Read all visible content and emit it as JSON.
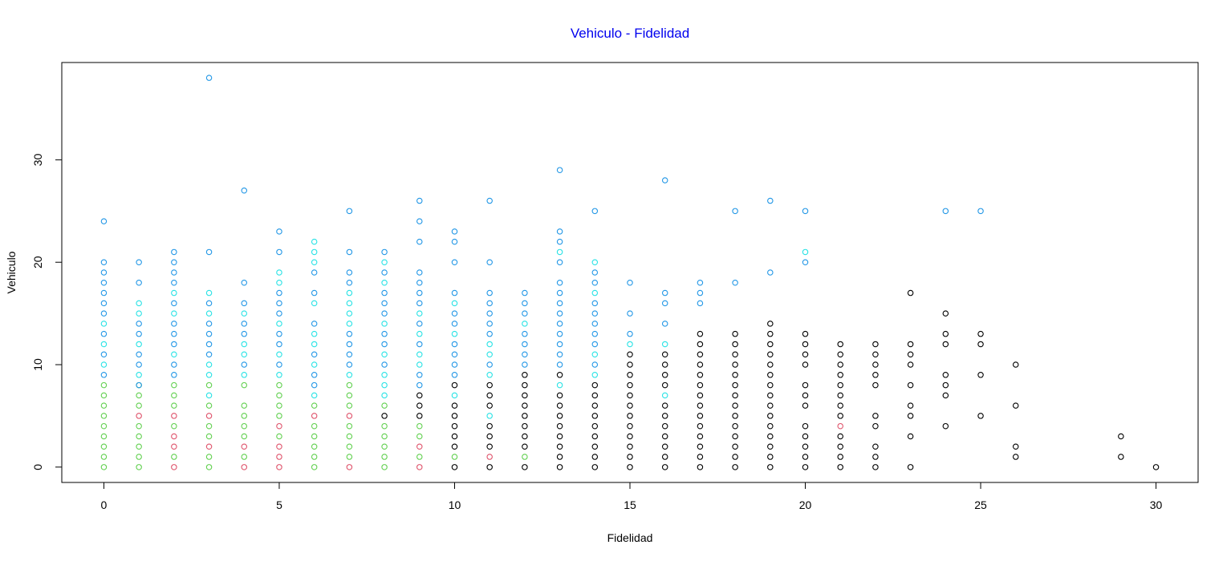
{
  "chart_data": {
    "type": "scatter",
    "title": "Vehiculo - Fidelidad",
    "xlabel": "Fidelidad",
    "ylabel": "Vehiculo",
    "xlim": [
      -1.2,
      31.2
    ],
    "ylim": [
      -1.5,
      39.5
    ],
    "xticks": [
      0,
      5,
      10,
      15,
      20,
      25,
      30
    ],
    "yticks": [
      0,
      10,
      20,
      30
    ],
    "grid": false,
    "legend": "none",
    "colors": {
      "title": "#0000ee",
      "green": "#61d04f",
      "red": "#df536b",
      "cyan": "#28e2e5",
      "blue": "#2297e6",
      "black": "#000000"
    },
    "columns": [
      {
        "x": 0,
        "green": [
          0,
          1,
          2,
          3,
          4,
          5,
          6,
          7,
          8
        ],
        "cyan": [
          10,
          12,
          14
        ],
        "blue": [
          9,
          11,
          13,
          15,
          16,
          17,
          18,
          19,
          20,
          24
        ]
      },
      {
        "x": 1,
        "green": [
          0,
          1,
          2,
          3,
          4,
          6,
          7,
          8
        ],
        "red": [
          5
        ],
        "cyan": [
          9,
          12,
          15,
          16
        ],
        "blue": [
          8,
          10,
          11,
          13,
          14,
          18,
          20
        ]
      },
      {
        "x": 2,
        "green": [
          1,
          4,
          6,
          7,
          8
        ],
        "red": [
          0,
          2,
          3,
          5
        ],
        "cyan": [
          11,
          15,
          17
        ],
        "blue": [
          9,
          10,
          12,
          13,
          14,
          16,
          18,
          19,
          20,
          21
        ]
      },
      {
        "x": 3,
        "green": [
          0,
          1,
          3,
          4,
          6,
          8
        ],
        "red": [
          2,
          5
        ],
        "cyan": [
          7,
          9,
          10,
          15,
          17
        ],
        "blue": [
          11,
          12,
          13,
          14,
          16,
          21,
          38
        ]
      },
      {
        "x": 4,
        "green": [
          1,
          3,
          4,
          5,
          6,
          8
        ],
        "red": [
          0,
          2
        ],
        "cyan": [
          9,
          11,
          12,
          15
        ],
        "blue": [
          10,
          13,
          14,
          16,
          18,
          27
        ]
      },
      {
        "x": 5,
        "green": [
          3,
          5,
          6,
          7,
          8
        ],
        "red": [
          0,
          1,
          2,
          4
        ],
        "cyan": [
          9,
          11,
          14,
          18,
          19
        ],
        "blue": [
          10,
          12,
          13,
          15,
          16,
          17,
          21,
          23
        ]
      },
      {
        "x": 6,
        "green": [
          0,
          1,
          2,
          3,
          4,
          6
        ],
        "red": [
          5
        ],
        "cyan": [
          7,
          10,
          12,
          13,
          16,
          20,
          21,
          22
        ],
        "blue": [
          8,
          9,
          11,
          14,
          17,
          19
        ]
      },
      {
        "x": 7,
        "green": [
          1,
          2,
          3,
          4,
          6,
          7,
          8
        ],
        "red": [
          0,
          5
        ],
        "cyan": [
          9,
          14,
          15,
          16,
          17
        ],
        "blue": [
          10,
          11,
          12,
          13,
          18,
          19,
          21,
          25
        ]
      },
      {
        "x": 8,
        "green": [
          0,
          1,
          2,
          3,
          4,
          6
        ],
        "cyan": [
          7,
          8,
          9,
          11,
          14,
          18,
          20
        ],
        "blue": [
          10,
          12,
          13,
          15,
          16,
          17,
          19,
          21
        ],
        "black": [
          5
        ]
      },
      {
        "x": 9,
        "green": [
          1,
          3,
          4
        ],
        "red": [
          0,
          2
        ],
        "cyan": [
          10,
          11,
          13,
          15
        ],
        "blue": [
          8,
          9,
          12,
          14,
          16,
          17,
          18,
          19,
          22,
          24,
          26
        ],
        "black": [
          5,
          6,
          7
        ]
      },
      {
        "x": 10,
        "green": [
          1
        ],
        "cyan": [
          7,
          13,
          16
        ],
        "blue": [
          9,
          10,
          11,
          12,
          14,
          15,
          17,
          20,
          22,
          23
        ],
        "black": [
          0,
          2,
          3,
          4,
          5,
          6,
          8
        ]
      },
      {
        "x": 11,
        "red": [
          1
        ],
        "cyan": [
          5,
          9,
          11,
          12
        ],
        "blue": [
          10,
          13,
          14,
          15,
          16,
          17,
          20,
          26
        ],
        "black": [
          0,
          2,
          3,
          4,
          6,
          7,
          8
        ]
      },
      {
        "x": 12,
        "green": [
          1
        ],
        "cyan": [
          14
        ],
        "blue": [
          10,
          11,
          12,
          13,
          15,
          16,
          17
        ],
        "black": [
          0,
          2,
          3,
          4,
          5,
          6,
          7,
          8,
          9
        ]
      },
      {
        "x": 13,
        "cyan": [
          8,
          21
        ],
        "blue": [
          10,
          11,
          12,
          13,
          14,
          15,
          16,
          17,
          18,
          20,
          22,
          23,
          29
        ],
        "black": [
          0,
          1,
          2,
          3,
          4,
          5,
          6,
          7,
          9
        ]
      },
      {
        "x": 14,
        "cyan": [
          9,
          11,
          17,
          20
        ],
        "blue": [
          10,
          12,
          13,
          14,
          15,
          16,
          18,
          19,
          25
        ],
        "black": [
          0,
          1,
          2,
          3,
          4,
          5,
          6,
          7,
          8
        ]
      },
      {
        "x": 15,
        "cyan": [
          12
        ],
        "blue": [
          13,
          15,
          18
        ],
        "black": [
          0,
          1,
          2,
          3,
          4,
          5,
          6,
          7,
          8,
          9,
          10,
          11
        ]
      },
      {
        "x": 16,
        "cyan": [
          7,
          12
        ],
        "blue": [
          14,
          16,
          17,
          28
        ],
        "black": [
          0,
          1,
          2,
          3,
          4,
          5,
          6,
          8,
          9,
          10,
          11
        ]
      },
      {
        "x": 17,
        "blue": [
          16,
          17,
          18
        ],
        "black": [
          0,
          1,
          2,
          3,
          4,
          5,
          6,
          7,
          8,
          9,
          10,
          11,
          12,
          13
        ]
      },
      {
        "x": 18,
        "blue": [
          18,
          25
        ],
        "black": [
          0,
          1,
          2,
          3,
          4,
          5,
          6,
          7,
          8,
          9,
          10,
          11,
          12,
          13
        ]
      },
      {
        "x": 19,
        "blue": [
          19,
          26
        ],
        "black": [
          0,
          1,
          2,
          3,
          4,
          5,
          6,
          7,
          8,
          9,
          10,
          11,
          12,
          13,
          14
        ]
      },
      {
        "x": 20,
        "cyan": [
          21
        ],
        "blue": [
          20,
          25
        ],
        "black": [
          0,
          1,
          2,
          3,
          4,
          6,
          7,
          8,
          10,
          11,
          12,
          13
        ]
      },
      {
        "x": 21,
        "red": [
          4
        ],
        "black": [
          0,
          1,
          2,
          3,
          5,
          6,
          7,
          8,
          9,
          10,
          11,
          12
        ]
      },
      {
        "x": 22,
        "black": [
          0,
          1,
          2,
          4,
          5,
          8,
          9,
          10,
          11,
          12
        ]
      },
      {
        "x": 23,
        "black": [
          0,
          3,
          5,
          6,
          8,
          10,
          11,
          12,
          17
        ]
      },
      {
        "x": 24,
        "blue": [
          25
        ],
        "black": [
          4,
          7,
          8,
          9,
          12,
          13,
          15
        ]
      },
      {
        "x": 25,
        "blue": [
          25
        ],
        "black": [
          5,
          9,
          12,
          13
        ]
      },
      {
        "x": 26,
        "black": [
          1,
          2,
          6,
          10
        ]
      },
      {
        "x": 29,
        "black": [
          1,
          3
        ]
      },
      {
        "x": 30,
        "black": [
          0
        ]
      }
    ]
  }
}
